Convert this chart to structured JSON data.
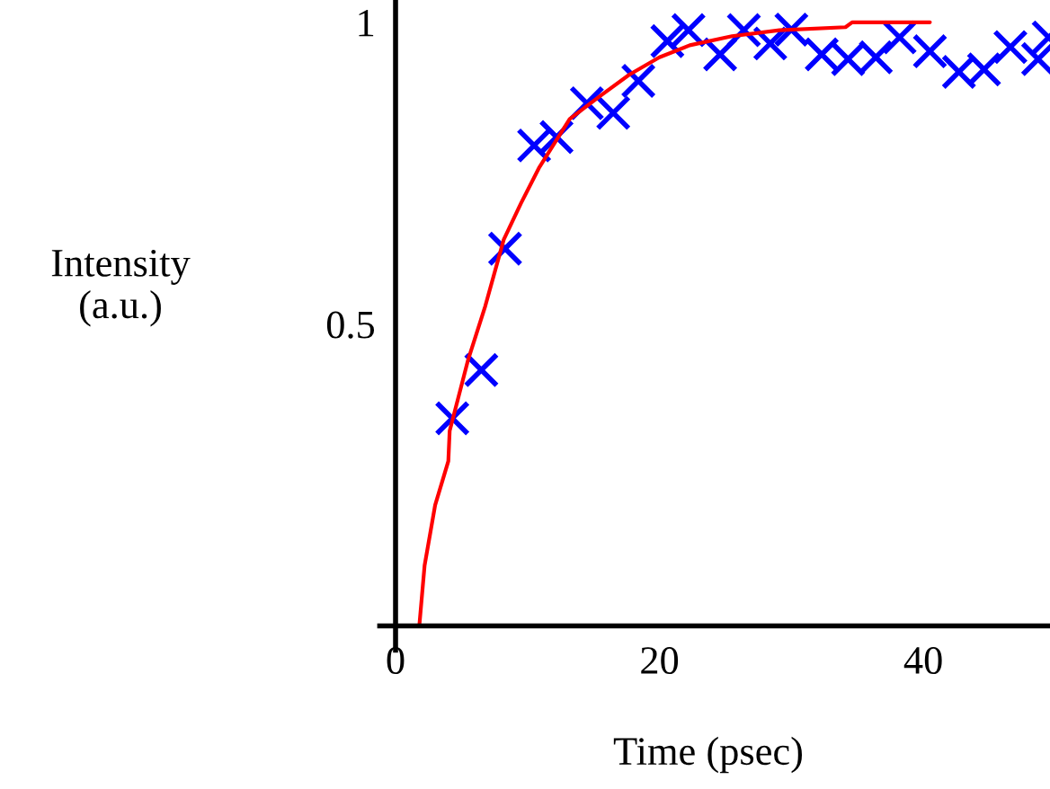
{
  "chart_data": {
    "type": "line",
    "xlabel": "Time (psec)",
    "ylabel": "Intensity\n(a.u.)",
    "xlim": [
      -1.2,
      49.6
    ],
    "ylim": [
      -0.04,
      1.037
    ],
    "xticks": [
      0,
      20,
      40
    ],
    "yticks": [
      0.5,
      1
    ],
    "grid": false,
    "series": [
      {
        "color": "#ff0000",
        "marker": "none",
        "x": [
          1.8,
          2.2,
          3.0,
          4.0,
          4.1,
          5.5,
          6.8,
          8.2,
          9.5,
          10.9,
          13.2,
          15.5,
          17.7,
          20.0,
          22.3,
          25.5,
          29.1,
          34.1,
          34.6,
          40.5
        ],
        "values": [
          0,
          0.1,
          0.2,
          0.273,
          0.323,
          0.441,
          0.53,
          0.64,
          0.7,
          0.76,
          0.84,
          0.878,
          0.913,
          0.942,
          0.962,
          0.977,
          0.987,
          0.992,
          1.0,
          1.0
        ]
      },
      {
        "type": "scatter",
        "color": "#0000ff",
        "marker": "cross",
        "x": [
          4.3,
          6.5,
          8.3,
          10.5,
          12.2,
          14.5,
          16.5,
          18.4,
          20.6,
          22.2,
          24.6,
          26.4,
          28.4,
          30.0,
          32.3,
          34.3,
          36.4,
          38.2,
          40.5,
          42.7,
          44.6,
          46.6,
          48.7,
          49.5
        ],
        "values": [
          0.344,
          0.424,
          0.625,
          0.796,
          0.81,
          0.866,
          0.85,
          0.903,
          0.969,
          0.987,
          0.947,
          0.987,
          0.965,
          0.988,
          0.947,
          0.939,
          0.942,
          0.975,
          0.952,
          0.918,
          0.922,
          0.959,
          0.939,
          0.975
        ]
      }
    ]
  }
}
